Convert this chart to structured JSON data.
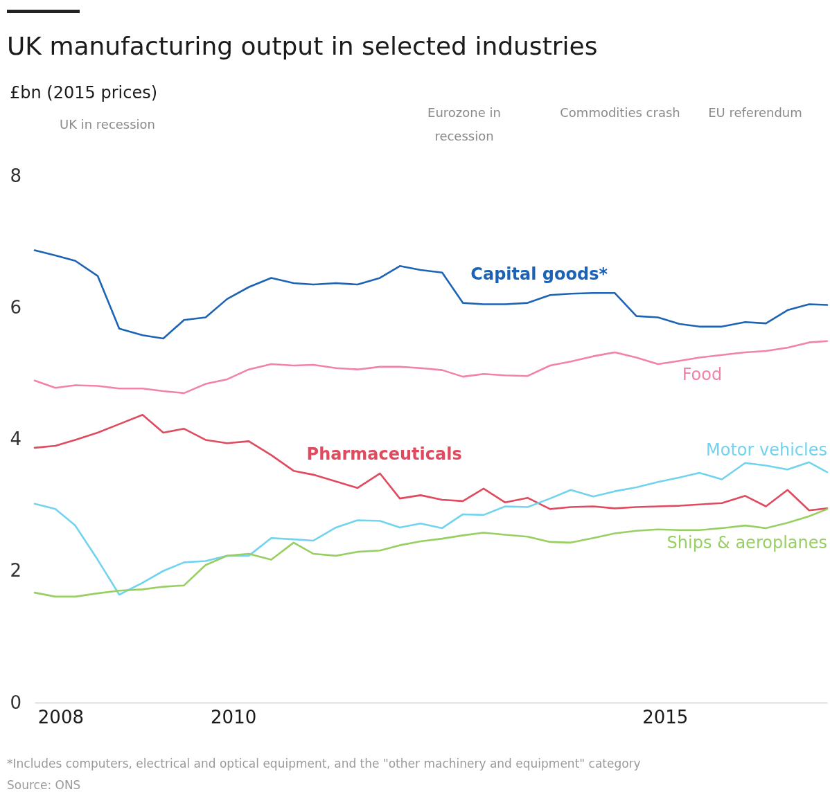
{
  "chart_data": {
    "type": "line",
    "title": "UK manufacturing output in selected industries",
    "ylabel": "£bn (2015 prices)",
    "x": [
      2007.7,
      2007.94,
      2008.17,
      2008.43,
      2008.68,
      2008.95,
      2009.19,
      2009.43,
      2009.68,
      2009.93,
      2010.18,
      2010.44,
      2010.7,
      2010.93,
      2011.19,
      2011.44,
      2011.7,
      2011.93,
      2012.17,
      2012.42,
      2012.66,
      2012.9,
      2013.15,
      2013.41,
      2013.67,
      2013.91,
      2014.17,
      2014.42,
      2014.67,
      2014.92,
      2015.17,
      2015.4,
      2015.66,
      2015.93,
      2016.17,
      2016.42,
      2016.67,
      2016.88
    ],
    "series": [
      {
        "name": "Capital goods*",
        "color": "#1d63b5",
        "values": [
          6.87,
          6.79,
          6.71,
          6.48,
          5.68,
          5.58,
          5.53,
          5.81,
          5.85,
          6.13,
          6.31,
          6.45,
          6.37,
          6.35,
          6.37,
          6.35,
          6.45,
          6.63,
          6.57,
          6.53,
          6.07,
          6.05,
          6.05,
          6.07,
          6.19,
          6.21,
          6.22,
          6.22,
          5.87,
          5.85,
          5.75,
          5.71,
          5.71,
          5.78,
          5.76,
          5.96,
          6.05,
          6.04
        ]
      },
      {
        "name": "Food",
        "color": "#f083a6",
        "values": [
          4.89,
          4.78,
          4.82,
          4.81,
          4.77,
          4.77,
          4.73,
          4.7,
          4.84,
          4.91,
          5.06,
          5.14,
          5.12,
          5.13,
          5.08,
          5.06,
          5.1,
          5.1,
          5.08,
          5.05,
          4.95,
          4.99,
          4.97,
          4.96,
          5.12,
          5.18,
          5.26,
          5.32,
          5.24,
          5.14,
          5.19,
          5.24,
          5.28,
          5.32,
          5.34,
          5.39,
          5.47,
          5.49
        ]
      },
      {
        "name": "Pharmaceuticals",
        "color": "#e04a5f",
        "values": [
          3.87,
          3.9,
          3.99,
          4.1,
          4.23,
          4.37,
          4.1,
          4.16,
          3.99,
          3.94,
          3.97,
          3.76,
          3.52,
          3.46,
          3.36,
          3.26,
          3.48,
          3.1,
          3.15,
          3.08,
          3.06,
          3.25,
          3.04,
          3.11,
          2.94,
          2.97,
          2.98,
          2.95,
          2.97,
          2.98,
          2.99,
          3.01,
          3.03,
          3.14,
          2.98,
          3.23,
          2.92,
          2.95
        ]
      },
      {
        "name": "Motor vehicles",
        "color": "#72d3ee",
        "values": [
          3.02,
          2.94,
          2.69,
          2.17,
          1.64,
          1.82,
          2.0,
          2.13,
          2.15,
          2.23,
          2.23,
          2.5,
          2.48,
          2.46,
          2.66,
          2.77,
          2.76,
          2.66,
          2.72,
          2.65,
          2.86,
          2.85,
          2.98,
          2.97,
          3.1,
          3.23,
          3.13,
          3.21,
          3.27,
          3.35,
          3.42,
          3.49,
          3.39,
          3.64,
          3.6,
          3.54,
          3.65,
          3.5
        ]
      },
      {
        "name": "Ships & aeroplanes",
        "color": "#97cf62",
        "values": [
          1.67,
          1.61,
          1.61,
          1.66,
          1.7,
          1.72,
          1.76,
          1.78,
          2.09,
          2.23,
          2.26,
          2.17,
          2.43,
          2.26,
          2.23,
          2.29,
          2.31,
          2.39,
          2.45,
          2.49,
          2.54,
          2.58,
          2.55,
          2.52,
          2.44,
          2.43,
          2.5,
          2.57,
          2.61,
          2.63,
          2.62,
          2.62,
          2.65,
          2.69,
          2.65,
          2.73,
          2.83,
          2.94
        ]
      }
    ],
    "xlim": [
      2007.7,
      2016.88
    ],
    "xticks": [
      2008,
      2010,
      2015
    ],
    "ylim": [
      0,
      8
    ],
    "yticks": [
      0,
      2,
      4,
      6,
      8
    ],
    "annotations": [
      "UK in recession",
      "Eurozone in recession",
      "Commodities crash",
      "EU referendum",
      "*Includes computers, electrical and optical equipment, and the \"other machinery and equipment\" category",
      "Source: ONS"
    ]
  }
}
